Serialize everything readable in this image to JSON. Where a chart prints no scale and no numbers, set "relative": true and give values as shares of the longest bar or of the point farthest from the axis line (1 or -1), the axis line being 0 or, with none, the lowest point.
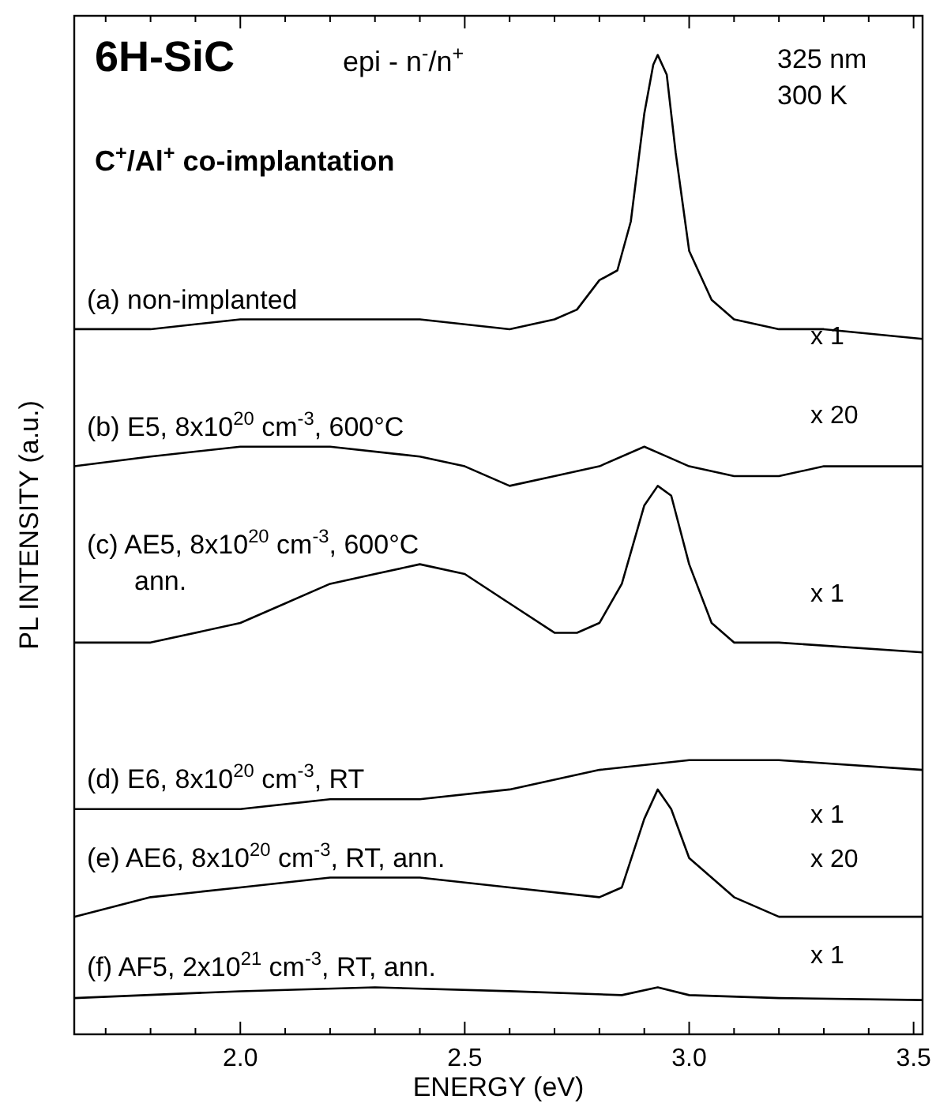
{
  "chart_data": {
    "type": "line",
    "relative": true,
    "title": "6H-SiC",
    "subtitle": "C$^{+}$/Al$^{+}$ co-implantation",
    "xlabel": "ENERGY  (eV)",
    "ylabel": "PL INTENSITY (a.u.)",
    "xlim": [
      1.63,
      3.52
    ],
    "xticks": [
      {
        "value": 1.7,
        "label": null
      },
      {
        "value": 1.8,
        "label": null
      },
      {
        "value": 1.9,
        "label": null
      },
      {
        "value": 2.0,
        "label": "2.0"
      },
      {
        "value": 2.1,
        "label": null
      },
      {
        "value": 2.2,
        "label": null
      },
      {
        "value": 2.3,
        "label": null
      },
      {
        "value": 2.4,
        "label": null
      },
      {
        "value": 2.5,
        "label": "2.5"
      },
      {
        "value": 2.6,
        "label": null
      },
      {
        "value": 2.7,
        "label": null
      },
      {
        "value": 2.8,
        "label": null
      },
      {
        "value": 2.9,
        "label": null
      },
      {
        "value": 3.0,
        "label": "3.0"
      },
      {
        "value": 3.1,
        "label": null
      },
      {
        "value": 3.2,
        "label": null
      },
      {
        "value": 3.3,
        "label": null
      },
      {
        "value": 3.4,
        "label": null
      },
      {
        "value": 3.5,
        "label": "3.5"
      }
    ],
    "grid": false,
    "marker": "none",
    "line_style": "solid",
    "series": [
      {
        "name": "(a) non-implanted",
        "color": "#000000",
        "x": [
          1.63,
          1.8,
          2.0,
          2.2,
          2.4,
          2.6,
          2.7,
          2.75,
          2.8,
          2.84,
          2.87,
          2.9,
          2.92,
          2.93,
          2.95,
          2.97,
          3.0,
          3.05,
          3.1,
          3.2,
          3.3,
          3.52
        ],
        "values": [
          0.72,
          0.72,
          0.73,
          0.73,
          0.73,
          0.72,
          0.73,
          0.74,
          0.77,
          0.78,
          0.83,
          0.94,
          0.99,
          1.0,
          0.98,
          0.9,
          0.8,
          0.75,
          0.73,
          0.72,
          0.72,
          0.71
        ]
      },
      {
        "name": "(b) E5, 8x10$^{20}$ cm$^{-3}$, 600°C",
        "color": "#000000",
        "x": [
          1.63,
          1.8,
          2.0,
          2.2,
          2.4,
          2.5,
          2.6,
          2.7,
          2.8,
          2.9,
          2.95,
          3.0,
          3.1,
          3.2,
          3.3,
          3.52
        ],
        "values": [
          0.58,
          0.59,
          0.6,
          0.6,
          0.59,
          0.58,
          0.56,
          0.57,
          0.58,
          0.6,
          0.59,
          0.58,
          0.57,
          0.57,
          0.58,
          0.58
        ]
      },
      {
        "name": "(c) AE5, 8x10$^{20}$ cm$^{-3}$, 600°C\nann.",
        "color": "#000000",
        "x": [
          1.63,
          1.8,
          2.0,
          2.1,
          2.2,
          2.3,
          2.4,
          2.5,
          2.6,
          2.7,
          2.75,
          2.8,
          2.85,
          2.9,
          2.93,
          2.96,
          3.0,
          3.05,
          3.1,
          3.2,
          3.52
        ],
        "values": [
          0.4,
          0.4,
          0.42,
          0.44,
          0.46,
          0.47,
          0.48,
          0.47,
          0.44,
          0.41,
          0.41,
          0.42,
          0.46,
          0.54,
          0.56,
          0.55,
          0.48,
          0.42,
          0.4,
          0.4,
          0.39
        ]
      },
      {
        "name": "(d) E6, 8x10$^{20}$ cm$^{-3}$, RT",
        "color": "#000000",
        "x": [
          1.63,
          1.8,
          2.0,
          2.2,
          2.4,
          2.6,
          2.8,
          3.0,
          3.2,
          3.52
        ],
        "values": [
          0.23,
          0.23,
          0.23,
          0.24,
          0.24,
          0.25,
          0.27,
          0.28,
          0.28,
          0.27
        ]
      },
      {
        "name": "(e) AE6, 8x10$^{20}$ cm$^{-3}$, RT, ann.",
        "color": "#000000",
        "x": [
          1.63,
          1.8,
          2.0,
          2.2,
          2.3,
          2.4,
          2.6,
          2.8,
          2.85,
          2.9,
          2.93,
          2.96,
          3.0,
          3.1,
          3.2,
          3.52
        ],
        "values": [
          0.12,
          0.14,
          0.15,
          0.16,
          0.16,
          0.16,
          0.15,
          0.14,
          0.15,
          0.22,
          0.25,
          0.23,
          0.18,
          0.14,
          0.12,
          0.12
        ]
      },
      {
        "name": "(f) AF5, 2x10$^{21}$ cm$^{-3}$, RT, ann.",
        "color": "#000000",
        "x": [
          1.63,
          2.0,
          2.3,
          2.6,
          2.85,
          2.93,
          3.0,
          3.2,
          3.52
        ],
        "values": [
          0.037,
          0.044,
          0.048,
          0.044,
          0.04,
          0.048,
          0.04,
          0.037,
          0.035
        ]
      }
    ],
    "annotations": [
      "epi - n$^{-}$/n$^{+}$",
      "325 nm",
      "300 K",
      "x 1",
      "x 20",
      "x 1",
      "x 20",
      "x 1",
      "x 1"
    ]
  }
}
